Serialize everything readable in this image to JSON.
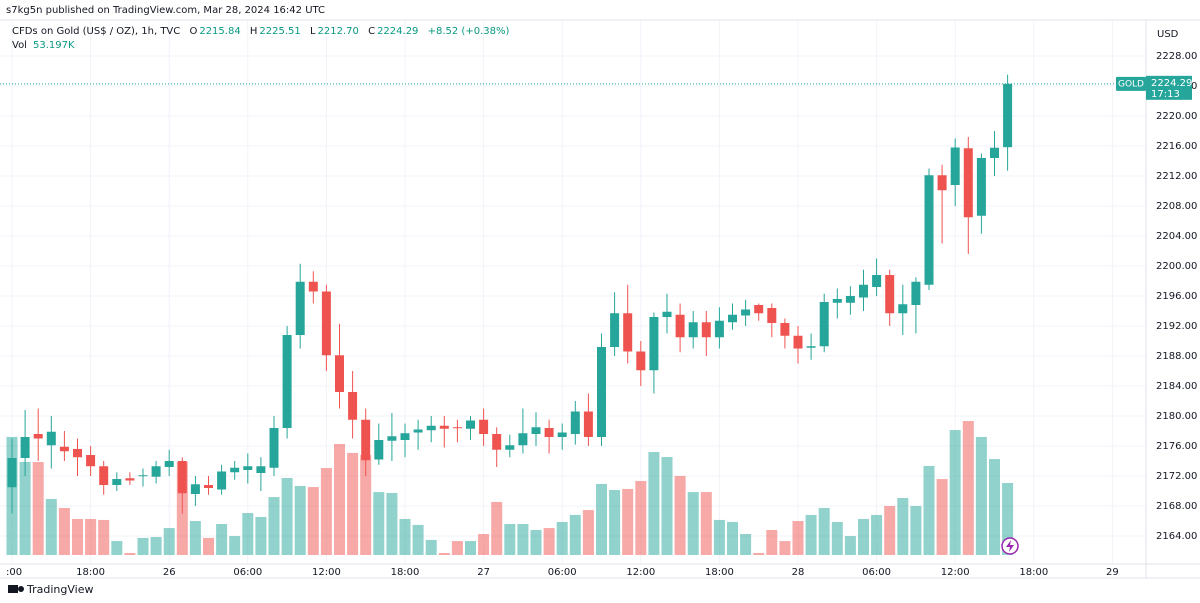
{
  "header": {
    "published": "s7kg5n published on TradingView.com, Mar 28, 2024 16:42 UTC",
    "logo": "TradingView"
  },
  "legend": {
    "symbol": "CFDs on Gold (US$ / OZ), 1h, TVC",
    "o_label": "O",
    "o": "2215.84",
    "h_label": "H",
    "h": "2225.51",
    "l_label": "L",
    "l": "2212.70",
    "c_label": "C",
    "c": "2224.29",
    "change": "+8.52 (+0.38%)",
    "vol_label": "Vol",
    "vol": "53.197K"
  },
  "chart_data": {
    "type": "candlestick",
    "currency": "USD",
    "ticker": "GOLD",
    "countdown": "17:13",
    "up_color": "#26a69a",
    "down_color": "#ef5350",
    "open": [
      2170.5,
      2174.4,
      2177.6,
      2176.1,
      2175.9,
      2175.6,
      2174.8,
      2173.3,
      2170.8,
      2171.7,
      2172,
      2171.9,
      2173.2,
      2174,
      2169.6,
      2170.8,
      2170.2,
      2172.5,
      2172.8,
      2172.4,
      2173.1,
      2178.4,
      2190.8,
      2197.9,
      2196.6,
      2188.1,
      2183.2,
      2179.5,
      2174.2,
      2176.7,
      2176.8,
      2177.8,
      2178.1,
      2178.7,
      2178.5,
      2178.3,
      2179.5,
      2177.6,
      2175.5,
      2176.1,
      2177.6,
      2178.4,
      2177.2,
      2177.6,
      2180.6,
      2177.2,
      2189.2,
      2193.7,
      2188.6,
      2186.1,
      2193.2,
      2193.5,
      2190.5,
      2192.5,
      2190.5,
      2192.5,
      2193.4,
      2194.8,
      2194.4,
      2192.4,
      2190.7,
      2189.1,
      2189.3,
      2195.1,
      2195.1,
      2195.8,
      2197.2,
      2198.8,
      2193.7,
      2194.8,
      2197.5,
      2212.1,
      2210.8,
      2215.7,
      2206.7,
      2214.4,
      2215.84
    ],
    "high": [
      2177,
      2180.8,
      2181,
      2180,
      2178,
      2177,
      2176,
      2174,
      2172.5,
      2172.5,
      2173,
      2174,
      2175.5,
      2174.5,
      2172,
      2172,
      2173.5,
      2174,
      2175,
      2174.5,
      2180,
      2192,
      2200.3,
      2199.3,
      2197.5,
      2192.3,
      2186,
      2181,
      2179,
      2180.4,
      2179,
      2179.5,
      2180,
      2180,
      2179.5,
      2180,
      2181,
      2178.5,
      2177.5,
      2181,
      2180.5,
      2179.5,
      2179,
      2182,
      2183,
      2191,
      2196.5,
      2197.5,
      2190,
      2193.8,
      2196.3,
      2195,
      2194,
      2194,
      2194.5,
      2195,
      2195.5,
      2195,
      2195,
      2193,
      2192,
      2191,
      2196.3,
      2197,
      2197.3,
      2199.5,
      2201,
      2199.5,
      2197.5,
      2198.5,
      2213,
      2213.5,
      2217,
      2217.2,
      2215,
      2218,
      2225.51
    ],
    "low": [
      2167,
      2172,
      2174,
      2173,
      2174,
      2172,
      2172,
      2169.5,
      2170,
      2170.8,
      2170.6,
      2171,
      2172,
      2167,
      2168,
      2169.5,
      2169.5,
      2171.5,
      2171,
      2170,
      2172,
      2177,
      2189,
      2195,
      2186,
      2181,
      2177,
      2172,
      2173.5,
      2174,
      2174.5,
      2175.5,
      2176.5,
      2175.8,
      2176.5,
      2176.8,
      2176,
      2173.2,
      2174.5,
      2175,
      2176,
      2175,
      2175.5,
      2176.2,
      2176,
      2176,
      2188,
      2187,
      2184,
      2183,
      2191,
      2188.5,
      2189,
      2188,
      2189,
      2191.5,
      2192,
      2192.7,
      2190.5,
      2189,
      2187,
      2187.5,
      2188.5,
      2193,
      2193.5,
      2194,
      2196,
      2192,
      2190.8,
      2191,
      2196.8,
      2203,
      2208,
      2201.6,
      2204.3,
      2212,
      2212.7
    ],
    "close": [
      2174.4,
      2177.2,
      2177,
      2177.9,
      2175.3,
      2174.5,
      2173.3,
      2170.8,
      2171.6,
      2171.4,
      2172.1,
      2173.3,
      2174,
      2169.7,
      2170.9,
      2170.4,
      2172.6,
      2173.1,
      2173.3,
      2173.3,
      2178.4,
      2190.8,
      2197.9,
      2196.6,
      2188.1,
      2183.2,
      2179.5,
      2174.1,
      2176.8,
      2177.3,
      2177.7,
      2178.2,
      2178.7,
      2178.3,
      2178.4,
      2179.4,
      2177.6,
      2175.5,
      2176.1,
      2177.7,
      2178.5,
      2177.2,
      2177.8,
      2180.6,
      2177.2,
      2189.2,
      2193.7,
      2188.6,
      2186.1,
      2193.2,
      2193.9,
      2190.5,
      2192.5,
      2190.5,
      2192.7,
      2193.5,
      2194.2,
      2193.7,
      2192.4,
      2190.7,
      2189,
      2189.3,
      2195.2,
      2195.6,
      2196,
      2197.5,
      2198.8,
      2193.7,
      2194.9,
      2197.9,
      2212.1,
      2210.1,
      2215.8,
      2206.5,
      2214.4,
      2215.77,
      2224.29
    ],
    "volume": [
      87.2,
      68.7,
      68.7,
      41.4,
      34.7,
      26.6,
      26.6,
      25.9,
      10.3,
      1.5,
      12.6,
      13.3,
      19.9,
      68.7,
      25.1,
      12.6,
      22.9,
      14.0,
      31.0,
      28.1,
      42.8,
      56.9,
      51.0,
      50.2,
      64.3,
      82.0,
      75.4,
      73.9,
      46.5,
      45.8,
      26.6,
      22.2,
      11.1,
      1.5,
      10.3,
      10.3,
      15.5,
      39.2,
      22.9,
      22.9,
      18.5,
      19.9,
      24.4,
      29.6,
      33.2,
      52.5,
      48.0,
      48.8,
      54.7,
      76.1,
      72.4,
      58.4,
      46.5,
      46.5,
      25.9,
      24.4,
      15.5,
      1.5,
      18.5,
      10.3,
      25.1,
      29.6,
      34.7,
      24.4,
      14.0,
      26.6,
      29.6,
      36.2,
      42.1,
      36.2,
      65.8,
      56.1,
      92.3,
      99.0,
      87.2,
      70.9,
      53.197
    ],
    "ylim": [
      2164,
      2228
    ],
    "yticks": [
      {
        "value": 2164,
        "label": "2164.00"
      },
      {
        "value": 2168,
        "label": "2168.00"
      },
      {
        "value": 2172,
        "label": "2172.00"
      },
      {
        "value": 2176,
        "label": "2176.00"
      },
      {
        "value": 2180,
        "label": "2180.00"
      },
      {
        "value": 2184,
        "label": "2184.00"
      },
      {
        "value": 2188,
        "label": "2188.00"
      },
      {
        "value": 2192,
        "label": "2192.00"
      },
      {
        "value": 2196,
        "label": "2196.00"
      },
      {
        "value": 2200,
        "label": "2200.00"
      },
      {
        "value": 2204,
        "label": "2204.00"
      },
      {
        "value": 2208,
        "label": "2208.00"
      },
      {
        "value": 2212,
        "label": "2212.00"
      },
      {
        "value": 2216,
        "label": "2216.00"
      },
      {
        "value": 2220,
        "label": "2220.00"
      },
      {
        "value": 2224,
        "label": "2224.00"
      },
      {
        "value": 2228,
        "label": "2228.00"
      }
    ],
    "xticks": [
      {
        "value": 0,
        "label": ":00"
      },
      {
        "value": 6,
        "label": "18:00"
      },
      {
        "value": 12,
        "label": "26"
      },
      {
        "value": 18,
        "label": "06:00"
      },
      {
        "value": 24,
        "label": "12:00"
      },
      {
        "value": 30,
        "label": "18:00"
      },
      {
        "value": 36,
        "label": "27"
      },
      {
        "value": 42,
        "label": "06:00"
      },
      {
        "value": 48,
        "label": "12:00"
      },
      {
        "value": 54,
        "label": "18:00"
      },
      {
        "value": 60,
        "label": "28"
      },
      {
        "value": 66,
        "label": "06:00"
      },
      {
        "value": 72,
        "label": "12:00"
      },
      {
        "value": 78,
        "label": "18:00"
      },
      {
        "value": 84,
        "label": "29"
      }
    ],
    "grid": true
  }
}
